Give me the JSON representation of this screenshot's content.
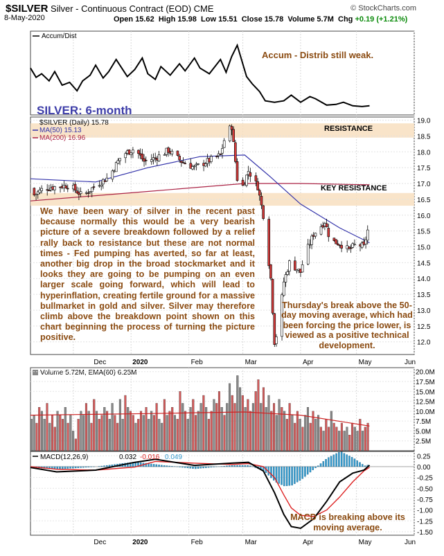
{
  "header": {
    "symbol": "$SILVER",
    "description": "Silver - Continuous Contract (EOD)",
    "exchange": "CME",
    "date": "8-May-2020",
    "credit": "© StockCharts.com",
    "open_label": "Open",
    "open": "15.62",
    "high_label": "High",
    "high": "15.98",
    "low_label": "Low",
    "low": "15.51",
    "close_label": "Close",
    "close": "15.78",
    "volume_label": "Volume",
    "volume": "5.7M",
    "chg_label": "Chg",
    "chg": "+0.19 (+1.21%)",
    "chg_color": "#0a8a0a"
  },
  "chart_data": [
    {
      "type": "line",
      "panel": "accum-dist",
      "title": "Accum/Dist",
      "x_dates": [
        "Nov 8",
        "Nov 11",
        "Nov 14",
        "Nov 18",
        "Nov 21",
        "Nov 25",
        "Nov 29",
        "Dec 3",
        "Dec 6",
        "Dec 10",
        "Dec 13",
        "Dec 17",
        "Dec 20",
        "Dec 24",
        "Dec 30",
        "Jan 3",
        "Jan 7",
        "Jan 10",
        "Jan 14",
        "Jan 17",
        "Jan 22",
        "Jan 27",
        "Jan 30",
        "Feb 4",
        "Feb 7",
        "Feb 12",
        "Feb 18",
        "Feb 21",
        "Feb 24",
        "Feb 27",
        "Mar 3",
        "Mar 6",
        "Mar 10",
        "Mar 13",
        "Mar 18",
        "Mar 23",
        "Mar 27",
        "Apr 1",
        "Apr 6",
        "Apr 9",
        "Apr 15",
        "Apr 20",
        "Apr 24",
        "Apr 29",
        "May 4",
        "May 8"
      ],
      "values": [
        42,
        55,
        50,
        60,
        47,
        66,
        62,
        74,
        60,
        52,
        38,
        56,
        47,
        30,
        54,
        44,
        28,
        50,
        58,
        40,
        52,
        36,
        46,
        28,
        42,
        50,
        30,
        48,
        26,
        10,
        54,
        64,
        75,
        88,
        90,
        88,
        80,
        90,
        82,
        85,
        94,
        93,
        90,
        95,
        96,
        95
      ],
      "value_scale": "relative (0 = top, 100 = bottom)",
      "annotation": "Accum - Distrib still weak.",
      "color": "#000000"
    },
    {
      "type": "candlestick",
      "panel": "price",
      "title": "SILVER: 6-month",
      "series_label": "$SILVER (Daily) 15.78",
      "ma50_label": "MA(50) 15.13",
      "ma200_label": "MA(200) 16.96",
      "y_ticks": [
        "19.0",
        "18.5",
        "18.0",
        "17.5",
        "17.0",
        "16.5",
        "16.0",
        "15.5",
        "15.0",
        "14.5",
        "14.0",
        "13.5",
        "13.0",
        "12.5",
        "12.0"
      ],
      "ylim": [
        11.6,
        19.1
      ],
      "x_ticks": [
        "Dec",
        "2020",
        "Feb",
        "Mar",
        "Apr",
        "May",
        "Jun"
      ],
      "resistance_zones": [
        {
          "label": "RESISTANCE",
          "low": 18.45,
          "high": 18.9
        },
        {
          "label": "KEY RESISTANCE",
          "low": 16.3,
          "high": 16.7
        }
      ],
      "ohlc_keypoints": [
        [
          "Nov 8",
          16.85,
          16.55
        ],
        [
          "Nov 15",
          16.95,
          16.85
        ],
        [
          "Nov 22",
          16.95,
          16.9
        ],
        [
          "Nov 29",
          16.9,
          16.95
        ],
        [
          "Dec 6",
          16.6,
          16.6
        ],
        [
          "Dec 13",
          17.0,
          16.95
        ],
        [
          "Dec 20",
          17.1,
          17.2
        ],
        [
          "Dec 27",
          17.9,
          17.9
        ],
        [
          "Jan 3",
          18.1,
          18.1
        ],
        [
          "Jan 8",
          18.3,
          17.7
        ],
        [
          "Jan 14",
          17.9,
          17.8
        ],
        [
          "Jan 21",
          18.0,
          18.05
        ],
        [
          "Jan 28",
          17.6,
          17.7
        ],
        [
          "Feb 4",
          17.8,
          17.5
        ],
        [
          "Feb 11",
          17.7,
          17.7
        ],
        [
          "Feb 18",
          18.0,
          17.9
        ],
        [
          "Feb 21",
          18.2,
          18.6
        ],
        [
          "Feb 24",
          18.6,
          18.8
        ],
        [
          "Feb 28",
          18.2,
          16.6
        ],
        [
          "Mar 4",
          17.5,
          17.4
        ],
        [
          "Mar 9",
          17.1,
          16.9
        ],
        [
          "Mar 12",
          16.9,
          16.0
        ],
        [
          "Mar 16",
          15.0,
          14.0
        ],
        [
          "Mar 18",
          14.0,
          12.0
        ],
        [
          "Mar 20",
          12.3,
          12.4
        ],
        [
          "Mar 23",
          13.0,
          13.9
        ],
        [
          "Mar 26",
          14.3,
          14.5
        ],
        [
          "Apr 1",
          14.3,
          14.2
        ],
        [
          "Apr 3",
          14.1,
          14.7
        ],
        [
          "Apr 8",
          15.2,
          15.4
        ],
        [
          "Apr 14",
          15.8,
          15.8
        ],
        [
          "Apr 17",
          15.5,
          15.2
        ],
        [
          "Apr 22",
          15.2,
          15.1
        ],
        [
          "Apr 27",
          15.2,
          14.9
        ],
        [
          "May 1",
          15.0,
          15.1
        ],
        [
          "May 5",
          14.8,
          15.0
        ],
        [
          "May 8",
          15.62,
          15.78
        ]
      ],
      "ma50_points": [
        [
          "Nov 8",
          17.15
        ],
        [
          "Dec 13",
          17.05
        ],
        [
          "Jan 10",
          17.5
        ],
        [
          "Feb 7",
          17.85
        ],
        [
          "Mar 2",
          17.9
        ],
        [
          "Mar 16",
          17.2
        ],
        [
          "Apr 1",
          16.35
        ],
        [
          "Apr 22",
          15.6
        ],
        [
          "May 8",
          15.13
        ]
      ],
      "ma200_points": [
        [
          "Nov 8",
          16.45
        ],
        [
          "Jan 10",
          16.75
        ],
        [
          "Mar 2",
          17.0
        ],
        [
          "Apr 1",
          17.0
        ],
        [
          "May 8",
          16.96
        ]
      ],
      "annotations": [
        "We have been wary of silver in the recent past because normally this would be a very bearish picture of a severe breakdown followed by a relief rally back to resistance but these are not normal times - Fed pumping has averted, so far at least, another big drop in the broad stockmarket and it looks they are going to be pumping on an even larger scale going forward, which will lead to hyperinflation, creating fertile ground for a massive bullmarket in gold and silver. Silver may therefore climb above the breakdown point shown on this chart beginning the process of turning the picture positive.",
        "Thursday's break above the 50-day moving average, which had been forcing the price lower, is viewed as a positive technical development."
      ],
      "up_color": "#ffffff",
      "down_color": "#d33a3a",
      "ma50_color": "#3333aa",
      "ma200_color": "#aa2244"
    },
    {
      "type": "bar",
      "panel": "volume",
      "title": "Volume 5.72M, EMA(60) 6.25M",
      "y_ticks": [
        "20.0M",
        "17.5M",
        "15.0M",
        "12.5M",
        "10.0M",
        "7.5M",
        "5.0M",
        "2.5M"
      ],
      "ylim": [
        0,
        21
      ],
      "values_millions": [
        8,
        9,
        7,
        11,
        10,
        8,
        12,
        7,
        9,
        6,
        10,
        9,
        8,
        11,
        7,
        9,
        5,
        3,
        8,
        10,
        9,
        12,
        10,
        7,
        13,
        10,
        8,
        9,
        11,
        10,
        8,
        12,
        9,
        7,
        13,
        8,
        14,
        11,
        10,
        9,
        7,
        8,
        10,
        9,
        11,
        8,
        10,
        9,
        12,
        8,
        7,
        13,
        9,
        10,
        11,
        9,
        8,
        15,
        12,
        10,
        8,
        11,
        13,
        9,
        10,
        12,
        14,
        11,
        8,
        10,
        13,
        12,
        15,
        11,
        9,
        12,
        17,
        14,
        12,
        19,
        16,
        14,
        11,
        13,
        10,
        12,
        15,
        18,
        12,
        16,
        11,
        14,
        10,
        12,
        9,
        13,
        11,
        10,
        8,
        12,
        9,
        7,
        10,
        8,
        6,
        9,
        11,
        7,
        10,
        8,
        9,
        6,
        5,
        8,
        6,
        10,
        7,
        6,
        5,
        7,
        5,
        6,
        4,
        7,
        6,
        5,
        8,
        5,
        6,
        7
      ],
      "ema60_points": [
        [
          "Nov 8",
          9.0
        ],
        [
          "Jan 10",
          9.4
        ],
        [
          "Mar 2",
          9.8
        ],
        [
          "Apr 1",
          9.0
        ],
        [
          "May 8",
          6.25
        ]
      ],
      "ema_color": "#cc2222"
    },
    {
      "type": "line",
      "panel": "macd",
      "title": "MACD(12,26,9)",
      "macd_value": "0.032",
      "signal_value": "-0.016",
      "histogram_value": "0.049",
      "y_ticks": [
        "0.25",
        "0.00",
        "-0.25",
        "-0.50",
        "-0.75",
        "-1.00",
        "-1.25",
        "-1.50"
      ],
      "ylim": [
        -1.58,
        0.35
      ],
      "x_ticks": [
        "Dec",
        "2020",
        "Feb",
        "Mar",
        "Apr",
        "May",
        "Jun"
      ],
      "macd_points": [
        [
          "Nov 8",
          -0.02
        ],
        [
          "Nov 22",
          -0.12
        ],
        [
          "Dec 13",
          -0.08
        ],
        [
          "Jan 3",
          0.1
        ],
        [
          "Jan 14",
          0.17
        ],
        [
          "Feb 4",
          0.03
        ],
        [
          "Feb 24",
          0.08
        ],
        [
          "Mar 4",
          0.1
        ],
        [
          "Mar 12",
          -0.1
        ],
        [
          "Mar 18",
          -0.6
        ],
        [
          "Mar 23",
          -1.1
        ],
        [
          "Mar 27",
          -1.38
        ],
        [
          "Apr 1",
          -1.42
        ],
        [
          "Apr 8",
          -1.2
        ],
        [
          "Apr 15",
          -0.8
        ],
        [
          "Apr 22",
          -0.35
        ],
        [
          "Apr 29",
          -0.15
        ],
        [
          "May 5",
          -0.08
        ],
        [
          "May 8",
          0.032
        ]
      ],
      "signal_points": [
        [
          "Nov 8",
          0.0
        ],
        [
          "Nov 22",
          -0.06
        ],
        [
          "Dec 13",
          -0.08
        ],
        [
          "Jan 3",
          -0.01
        ],
        [
          "Jan 14",
          0.12
        ],
        [
          "Feb 4",
          0.08
        ],
        [
          "Feb 24",
          0.05
        ],
        [
          "Mar 4",
          0.07
        ],
        [
          "Mar 12",
          0.0
        ],
        [
          "Mar 18",
          -0.25
        ],
        [
          "Mar 23",
          -0.65
        ],
        [
          "Mar 27",
          -0.95
        ],
        [
          "Apr 1",
          -1.12
        ],
        [
          "Apr 8",
          -1.15
        ],
        [
          "Apr 15",
          -1.0
        ],
        [
          "Apr 22",
          -0.7
        ],
        [
          "Apr 29",
          -0.35
        ],
        [
          "May 5",
          -0.1
        ],
        [
          "May 8",
          -0.016
        ]
      ],
      "histogram_points": [
        [
          "Nov 8",
          -0.02
        ],
        [
          "Nov 22",
          -0.06
        ],
        [
          "Dec 13",
          0.0
        ],
        [
          "Jan 3",
          0.11
        ],
        [
          "Jan 14",
          0.05
        ],
        [
          "Feb 4",
          -0.05
        ],
        [
          "Feb 24",
          0.03
        ],
        [
          "Mar 4",
          0.03
        ],
        [
          "Mar 12",
          -0.1
        ],
        [
          "Mar 18",
          -0.35
        ],
        [
          "Mar 23",
          -0.45
        ],
        [
          "Mar 27",
          -0.43
        ],
        [
          "Apr 1",
          -0.3
        ],
        [
          "Apr 8",
          -0.05
        ],
        [
          "Apr 15",
          0.2
        ],
        [
          "Apr 22",
          0.35
        ],
        [
          "Apr 29",
          0.2
        ],
        [
          "May 5",
          0.02
        ],
        [
          "May 8",
          0.049
        ]
      ],
      "annotation": "MACD is breaking above its moving average.",
      "macd_color": "#000000",
      "signal_color": "#dd2222",
      "hist_color": "#3399cc"
    }
  ]
}
